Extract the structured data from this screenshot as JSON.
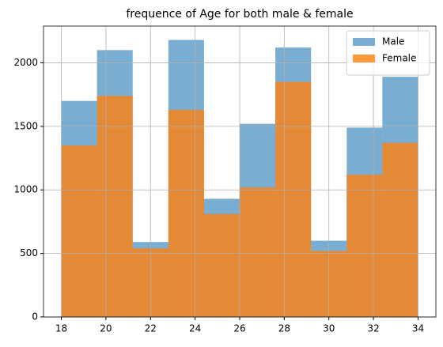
{
  "chart_data": {
    "type": "histogram",
    "title": "frequence of Age for both male & female",
    "bins": [
      18,
      19.6,
      21.2,
      22.8,
      24.4,
      26,
      27.6,
      29.2,
      30.8,
      32.4,
      34
    ],
    "series": [
      {
        "name": "Male",
        "color": "#1f77b4",
        "opacity": 0.6,
        "values": [
          1700,
          2100,
          590,
          2180,
          930,
          1520,
          2120,
          600,
          1490,
          1890
        ]
      },
      {
        "name": "Female",
        "color": "#ff7f0e",
        "opacity": 0.8,
        "values": [
          1350,
          1740,
          540,
          1630,
          810,
          1020,
          1850,
          520,
          1120,
          1370
        ]
      }
    ],
    "xlim": [
      17.2,
      34.8
    ],
    "ylim": [
      0,
      2289
    ],
    "xticks": [
      18,
      20,
      22,
      24,
      26,
      28,
      30,
      32,
      34
    ],
    "yticks": [
      0,
      500,
      1000,
      1500,
      2000
    ],
    "grid": true,
    "legend": "upper right"
  }
}
